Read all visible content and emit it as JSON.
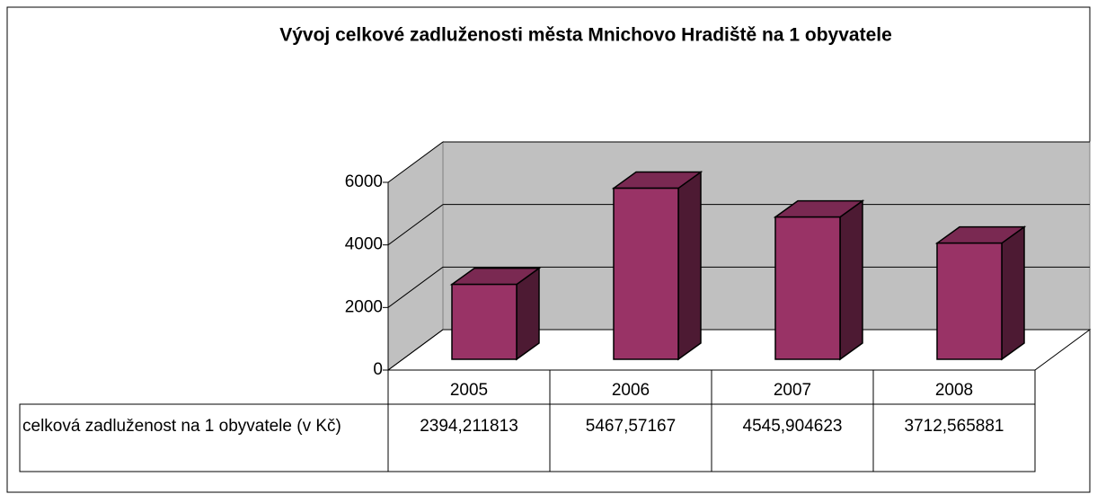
{
  "chart_data": {
    "type": "bar",
    "title": "Vývoj celkové zadluženosti města Mnichovo Hradiště na 1 obyvatele",
    "categories": [
      "2005",
      "2006",
      "2007",
      "2008"
    ],
    "series": [
      {
        "name": "celková zadluženost na 1 obyvatele (v Kč)",
        "color": "#993366",
        "values": [
          2394.211813,
          5467.57167,
          4545.904623,
          3712.565881
        ],
        "value_labels": [
          "2394,211813",
          "5467,57167",
          "4545,904623",
          "3712,565881"
        ]
      }
    ],
    "ylim": [
      0,
      6000
    ],
    "yticks": [
      0,
      2000,
      4000,
      6000
    ],
    "grid": true
  }
}
